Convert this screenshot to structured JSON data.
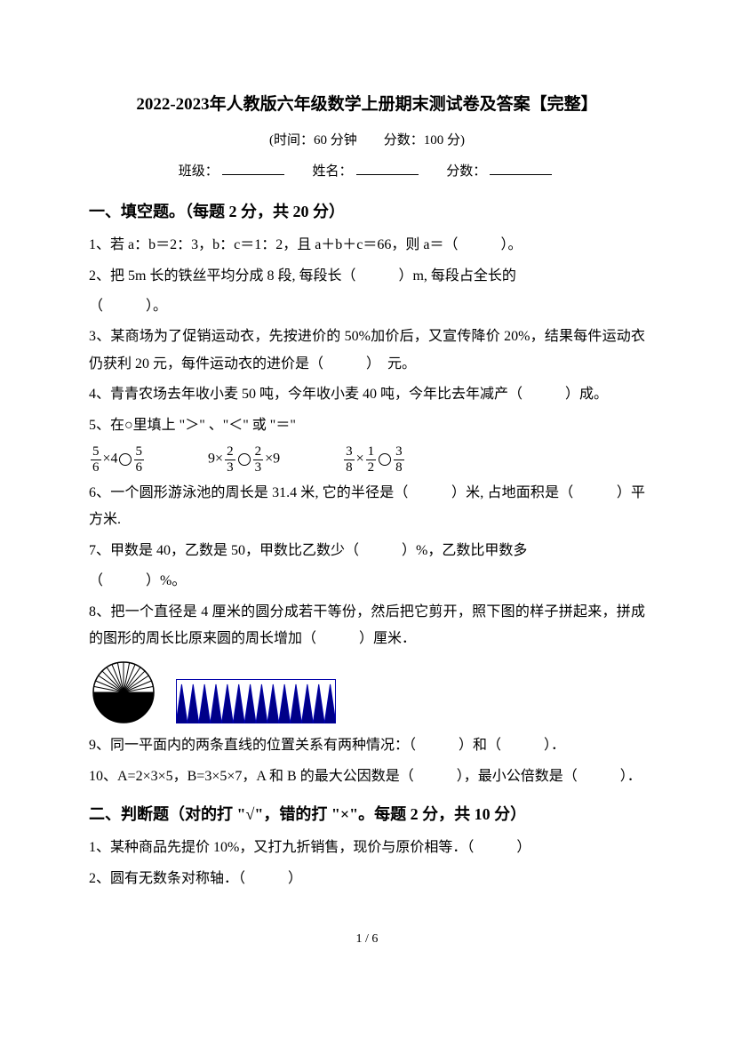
{
  "title": "2022-2023年人教版六年级数学上册期末测试卷及答案【完整】",
  "meta": "(时间：60 分钟　　分数：100 分)",
  "fillRow": {
    "classLabel": "班级：",
    "nameLabel": "姓名：",
    "scoreLabel": "分数："
  },
  "section1": {
    "header": "一、填空题。（每题 2 分，共 20 分）",
    "q1": "1、若 a：b＝2：3，b：c＝1：2，且 a＋b＋c＝66，则 a＝（　　　）。",
    "q2a": "2、把 5m 长的铁丝平均分成 8 段, 每段长（　　　）m, 每段占全长的",
    "q2b": "（　　　）。",
    "q3": "3、某商场为了促销运动衣，先按进价的 50%加价后，又宣传降价 20%，结果每件运动衣仍获利 20 元，每件运动衣的进价是（　　　）　元。",
    "q4": "4、青青农场去年收小麦 50 吨，今年收小麦 40 吨，今年比去年减产（　　　）成。",
    "q5lead": "5、在○里填上 \"＞\" 、\"＜\" 或 \"＝\"",
    "q5eq": {
      "e1": {
        "f1n": "5",
        "f1d": "6",
        "mid": "×4",
        "f2n": "5",
        "f2d": "6"
      },
      "e2": {
        "pre": "9×",
        "f1n": "2",
        "f1d": "3",
        "f2n": "2",
        "f2d": "3",
        "post": "×9"
      },
      "e3": {
        "f1n": "3",
        "f1d": "8",
        "mid1": "×",
        "f2n": "1",
        "f2d": "2",
        "f3n": "3",
        "f3d": "8"
      }
    },
    "q6": "6、一个圆形游泳池的周长是 31.4 米, 它的半径是（　　　）米, 占地面积是（　　　）平方米.",
    "q7a": "7、甲数是 40，乙数是 50，甲数比乙数少（　　　）%，乙数比甲数多",
    "q7b": "（　　　）%。",
    "q8": "8、把一个直径是 4 厘米的圆分成若干等份，然后把它剪开，照下图的样子拼起来，拼成的图形的周长比原来圆的周长增加（　　　）厘米．",
    "q9": "9、同一平面内的两条直线的位置关系有两种情况：（　　　）和（　　　）．",
    "q10": "10、A=2×3×5，B=3×5×7，A 和 B 的最大公因数是（　　　），最小公倍数是（　　　）．"
  },
  "section2": {
    "header": "二、判断题（对的打 \"√\"，错的打 \"×\"。每题 2 分，共 10 分）",
    "q1": "1、某种商品先提价 10%，又打九折销售，现价与原价相等．（　　　）",
    "q2": "2、圆有无数条对称轴．（　　　）"
  },
  "footer": "1 / 6",
  "diagrams": {
    "semicircle": {
      "fill": "#000000",
      "lineStroke": "#000000",
      "bg": "#ffffff",
      "sliceLines": 16
    },
    "comb": {
      "teeth": 14,
      "outline": "#0000aa",
      "fill": "#000088",
      "bg": "#ffffff"
    }
  }
}
